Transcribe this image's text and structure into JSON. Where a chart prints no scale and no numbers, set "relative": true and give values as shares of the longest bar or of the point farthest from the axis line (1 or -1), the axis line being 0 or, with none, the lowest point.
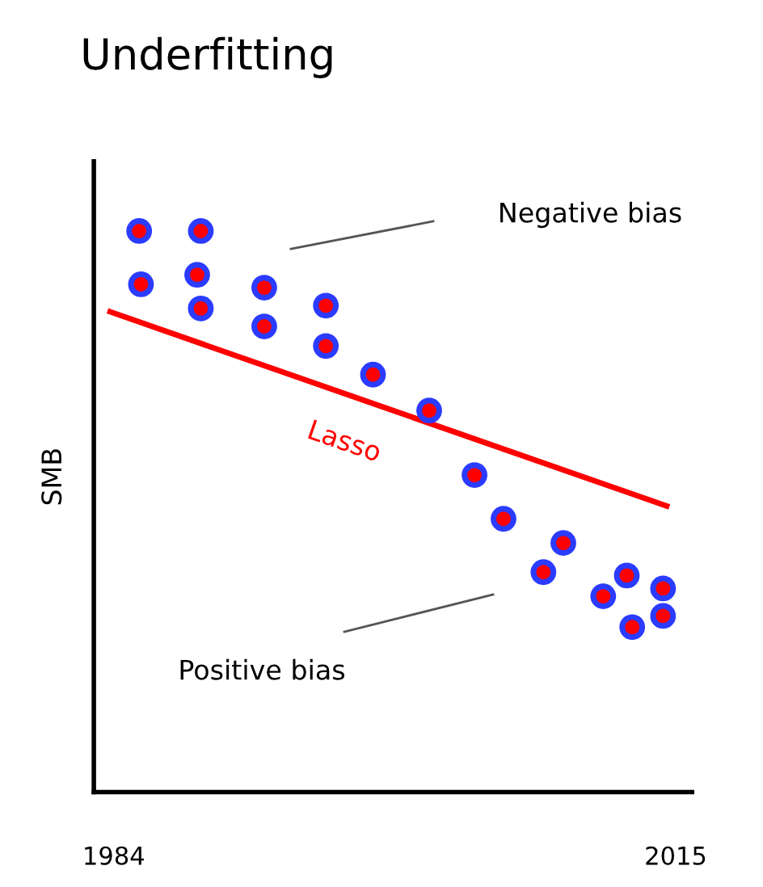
{
  "chart_data": {
    "type": "scatter",
    "title": "Underfitting",
    "ylabel": "SMB",
    "relative": true,
    "xlim": [
      1982.9,
      2015.9
    ],
    "xticks": [
      1984,
      2015
    ],
    "legend": false,
    "grid": false,
    "series": [
      {
        "color": "#2b3bff",
        "x": [
          1985.4,
          1988.8,
          1985.5,
          1988.6,
          1988.8,
          1992.3,
          1992.3,
          1995.7,
          1995.7,
          1998.3,
          2001.4,
          2003.9,
          2005.5,
          2008.8,
          2007.7,
          2011.0,
          2012.3,
          2012.6,
          2014.3,
          2014.3
        ],
        "values": [
          1.0,
          1.0,
          0.905,
          0.922,
          0.862,
          0.899,
          0.83,
          0.867,
          0.795,
          0.744,
          0.68,
          0.565,
          0.487,
          0.444,
          0.392,
          0.349,
          0.386,
          0.294,
          0.363,
          0.314
        ]
      },
      {
        "type": "line",
        "name": "Lasso",
        "color": "#ff0000",
        "x": [
          1983.8,
          2014.5
        ],
        "values": [
          0.856,
          0.51
        ]
      }
    ],
    "annotations": [
      "Negative bias",
      "Positive bias"
    ]
  }
}
